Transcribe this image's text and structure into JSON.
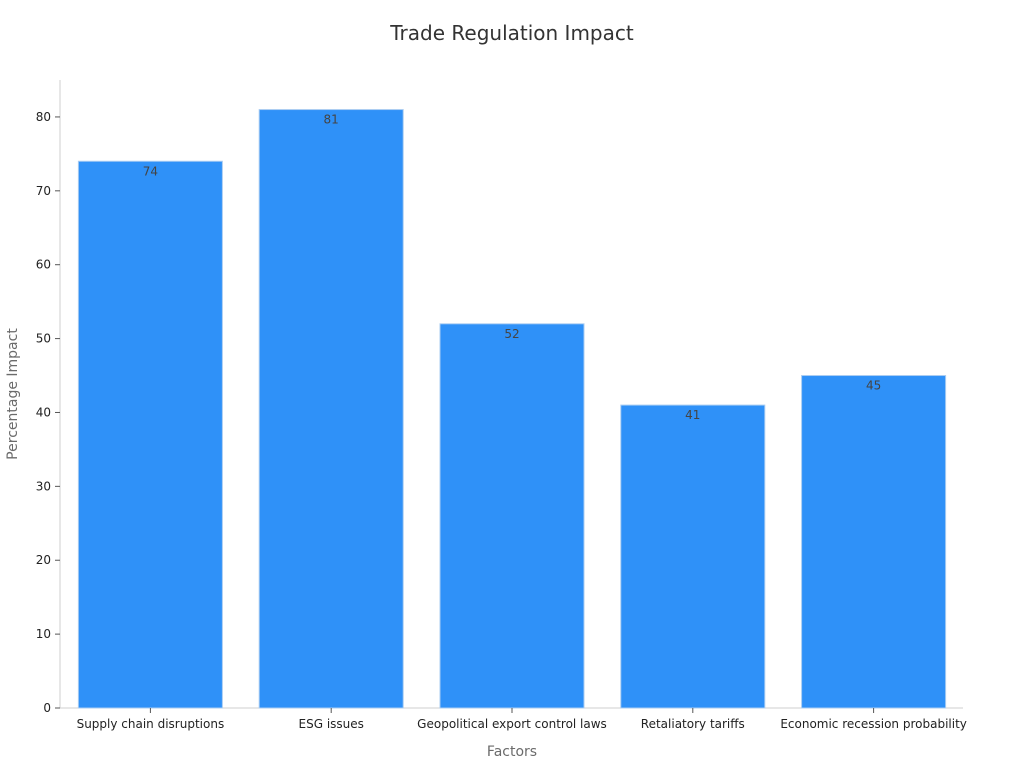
{
  "chart_data": {
    "type": "bar",
    "title": "Trade Regulation Impact",
    "xlabel": "Factors",
    "ylabel": "Percentage Impact",
    "categories": [
      "Supply chain disruptions",
      "ESG issues",
      "Geopolitical export control laws",
      "Retaliatory tariffs",
      "Economic recession probability"
    ],
    "values": [
      74,
      81,
      52,
      41,
      45
    ],
    "ylim": [
      0,
      85
    ],
    "yticks": [
      0,
      10,
      20,
      30,
      40,
      50,
      60,
      70,
      80
    ],
    "grid": false,
    "legend": "none",
    "colors": {
      "bar": "#2f91f8",
      "bar_edge": "#a9ccf2",
      "axis": "#cfcfcf",
      "text": "#333333"
    }
  }
}
